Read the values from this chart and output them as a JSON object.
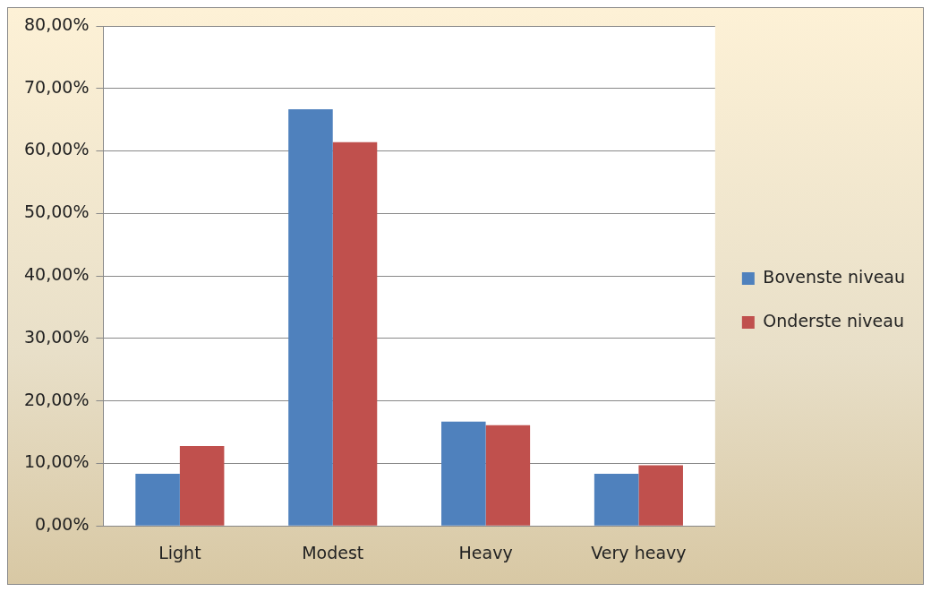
{
  "chart_data": {
    "type": "bar",
    "categories": [
      "Light",
      "Modest",
      "Heavy",
      "Very heavy"
    ],
    "series": [
      {
        "name": "Bovenste niveau",
        "color": "#4f81bd",
        "values": [
          8.33,
          66.67,
          16.7,
          8.33
        ]
      },
      {
        "name": "Onderste niveau",
        "color": "#c0504d",
        "values": [
          12.8,
          61.4,
          16.1,
          9.7
        ]
      }
    ],
    "ylim": [
      0,
      80
    ],
    "yticks": [
      {
        "value": 0,
        "label": "0,00%"
      },
      {
        "value": 10,
        "label": "10,00%"
      },
      {
        "value": 20,
        "label": "20,00%"
      },
      {
        "value": 30,
        "label": "30,00%"
      },
      {
        "value": 40,
        "label": "40,00%"
      },
      {
        "value": 50,
        "label": "50,00%"
      },
      {
        "value": 60,
        "label": "60,00%"
      },
      {
        "value": 70,
        "label": "70,00%"
      },
      {
        "value": 80,
        "label": "80,00%"
      }
    ],
    "grid": "y",
    "legend": "right"
  }
}
